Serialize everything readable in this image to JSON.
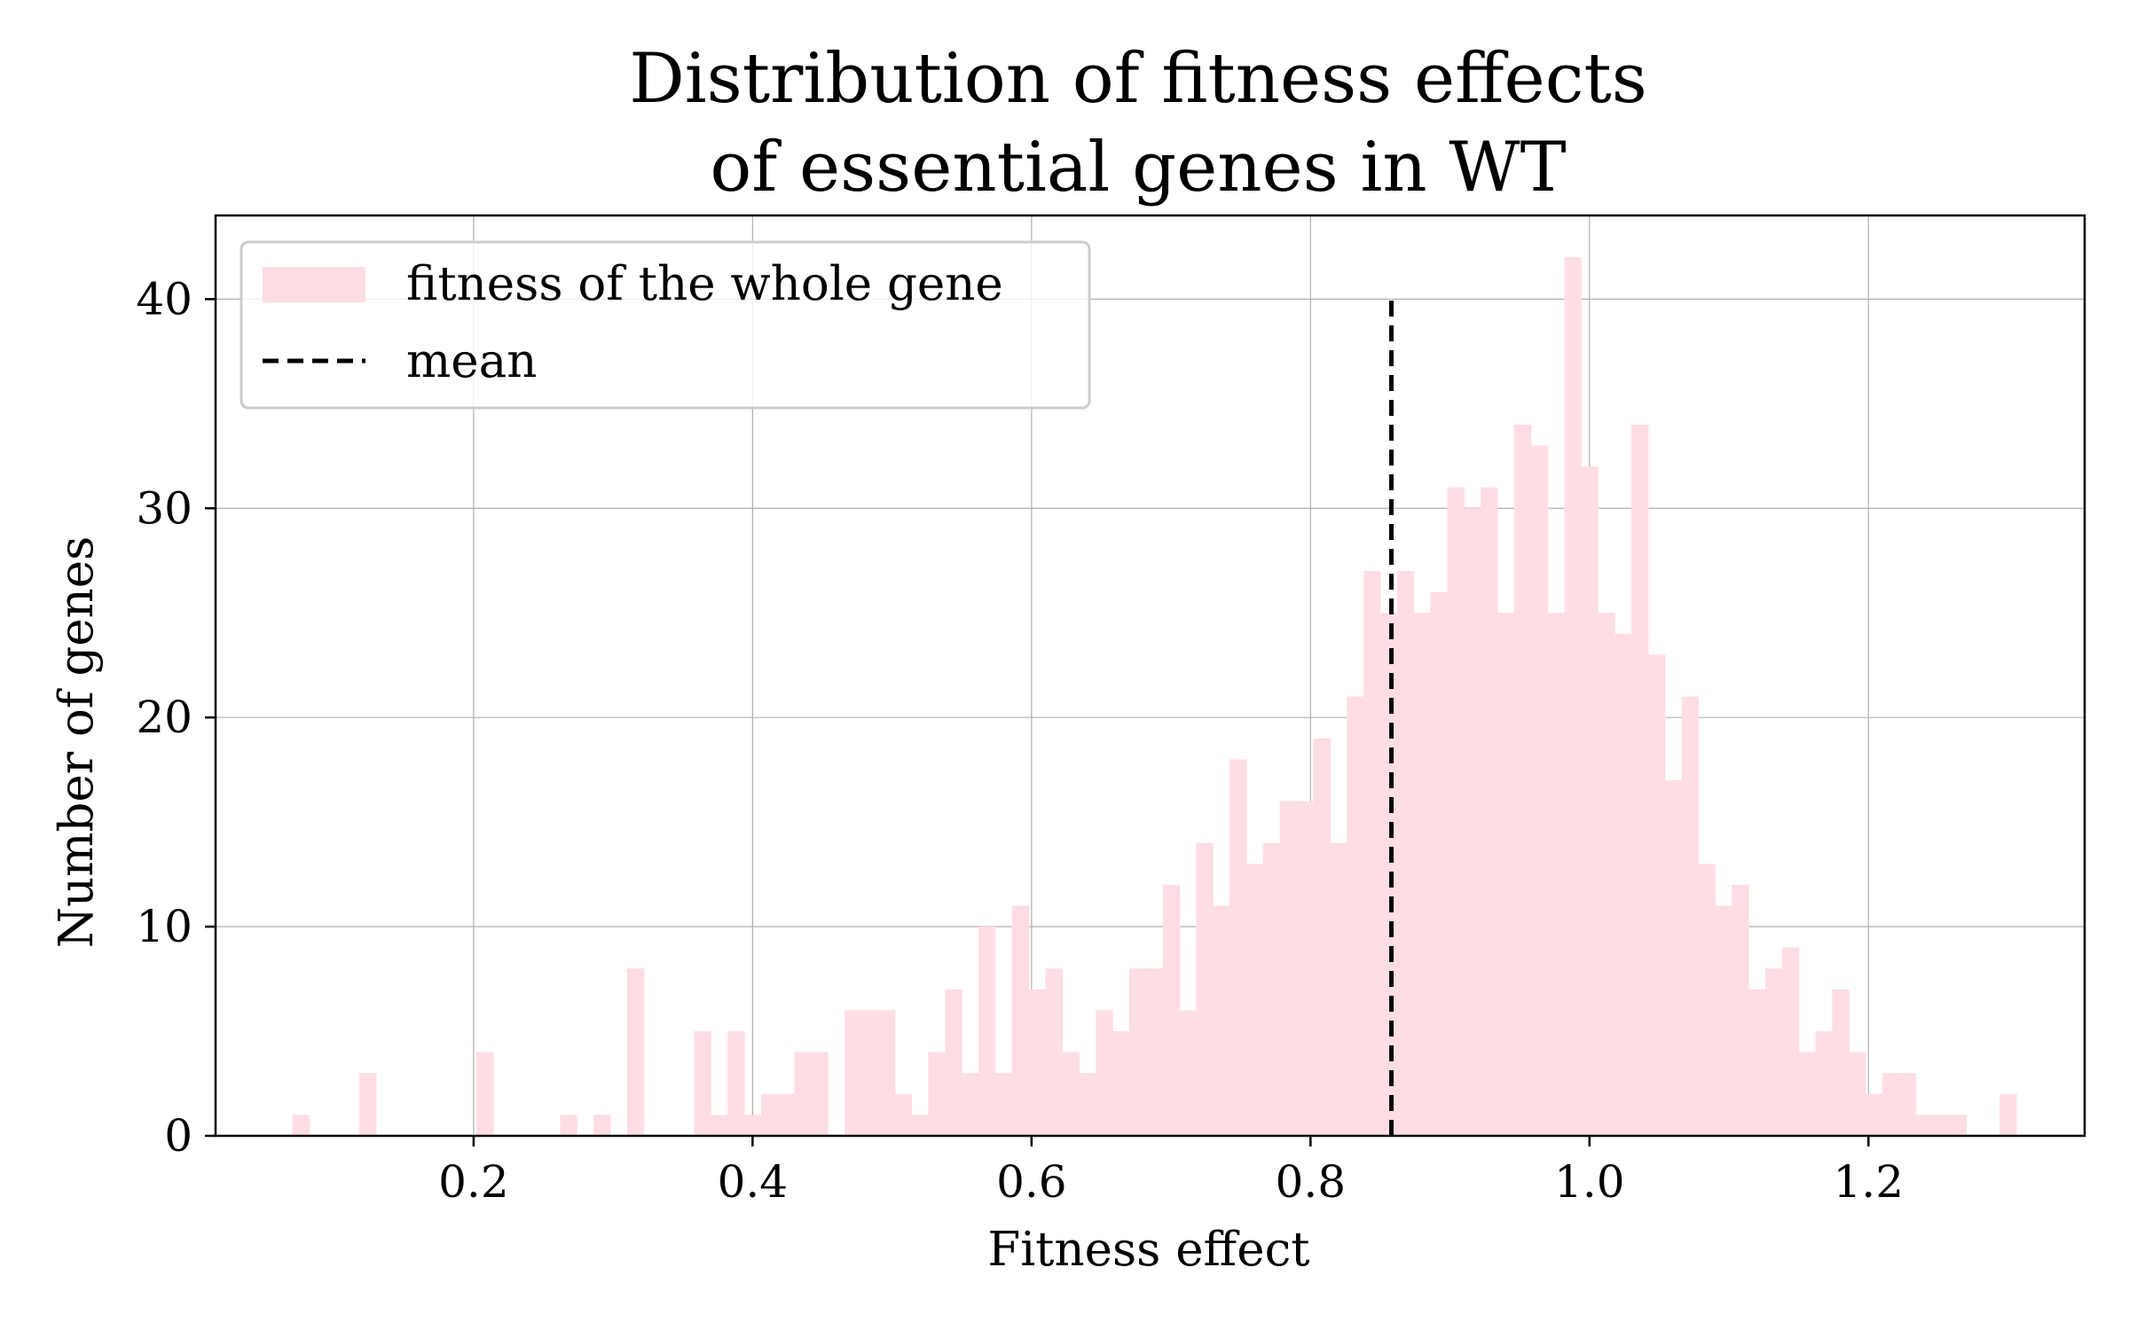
{
  "chart_data": {
    "type": "bar",
    "title_lines": [
      "Distribution of fitness effects",
      "of essential genes in WT"
    ],
    "xlabel": "Fitness effect",
    "ylabel": "Number of genes",
    "xlim": [
      0.015,
      1.355
    ],
    "ylim": [
      0,
      44
    ],
    "xticks": [
      "0.2",
      "0.4",
      "0.6",
      "0.8",
      "1.0",
      "1.2"
    ],
    "yticks": [
      "0",
      "10",
      "20",
      "30",
      "40"
    ],
    "grid": true,
    "legend_position": "top-left",
    "bin_start": 0.07,
    "bin_width": 0.012,
    "series": [
      {
        "name": "fitness of the whole gene",
        "color": "#ffdde4",
        "counts": [
          1,
          0,
          0,
          0,
          3,
          0,
          0,
          0,
          0,
          0,
          0,
          4,
          0,
          0,
          0,
          0,
          1,
          0,
          1,
          0,
          8,
          0,
          0,
          0,
          5,
          1,
          5,
          1,
          2,
          2,
          4,
          4,
          0,
          6,
          6,
          6,
          2,
          1,
          4,
          7,
          3,
          10,
          3,
          11,
          7,
          8,
          4,
          3,
          6,
          5,
          8,
          8,
          12,
          6,
          14,
          11,
          18,
          13,
          14,
          16,
          16,
          19,
          14,
          21,
          27,
          25,
          27,
          25,
          26,
          31,
          30,
          31,
          25,
          34,
          33,
          25,
          42,
          32,
          25,
          24,
          34,
          23,
          17,
          21,
          13,
          11,
          12,
          7,
          8,
          9,
          4,
          5,
          7,
          4,
          2,
          3,
          3,
          1,
          1,
          1,
          0,
          0,
          2
        ]
      }
    ],
    "mean": {
      "name": "mean",
      "x": 0.858,
      "y_max": 40,
      "color": "#000000"
    }
  }
}
